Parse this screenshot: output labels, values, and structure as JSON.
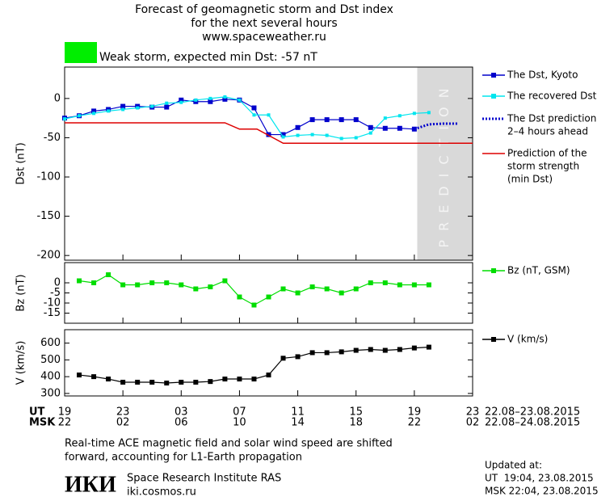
{
  "header": {
    "title": [
      "Forecast of geomagnetic storm and Dst index",
      "for the next several hours",
      "www.spaceweather.ru"
    ],
    "status": "Weak storm, expected min Dst: -57 nT",
    "status_color": "#00ee00"
  },
  "chart_data": [
    {
      "type": "line",
      "ylabel": "Dst (nT)",
      "ylim": [
        -206,
        40
      ],
      "yticks": [
        0,
        -50,
        -100,
        -150,
        -200
      ],
      "xlim": [
        0,
        28
      ],
      "prediction_region": {
        "start": 24.2,
        "end": 28,
        "label": "PREDICTION",
        "color": "#d9d9d9"
      },
      "series": [
        {
          "name": [
            "The Dst, Kyoto"
          ],
          "color": "#0000cc",
          "marker": "square",
          "dash": false,
          "x": [
            0,
            1,
            2,
            3,
            4,
            5,
            6,
            7,
            8,
            9,
            10,
            11,
            12,
            13,
            14,
            15,
            16,
            17,
            18,
            19,
            20,
            21,
            22,
            23,
            24
          ],
          "values": [
            -25,
            -22,
            -16,
            -14,
            -10,
            -10,
            -11,
            -11,
            -2,
            -4,
            -4,
            -1,
            -2,
            -12,
            -46,
            -46,
            -37,
            -27,
            -27,
            -27,
            -27,
            -37,
            -38,
            -38,
            -39
          ]
        },
        {
          "name": [
            "The recovered Dst"
          ],
          "color": "#00e5ee",
          "marker": "small-square",
          "dash": false,
          "x": [
            0,
            1,
            2,
            3,
            4,
            5,
            6,
            7,
            8,
            9,
            10,
            11,
            12,
            13,
            14,
            15,
            16,
            17,
            18,
            19,
            20,
            21,
            22,
            23,
            24,
            25
          ],
          "values": [
            -26,
            -22,
            -19,
            -16,
            -14,
            -12,
            -10,
            -6,
            -5,
            -2,
            0,
            2,
            -2,
            -21,
            -21,
            -49,
            -47,
            -46,
            -47,
            -51,
            -50,
            -44,
            -25,
            -22,
            -19,
            -18
          ]
        },
        {
          "name": [
            "The Dst prediction",
            "2–4 hours ahead"
          ],
          "color": "#0000cc",
          "marker": "none",
          "dash": true,
          "x": [
            24,
            25,
            26,
            27
          ],
          "values": [
            -39,
            -33,
            -32,
            -32
          ]
        },
        {
          "name": [
            "Prediction of the",
            "storm strength",
            "(min Dst)"
          ],
          "color": "#dd0000",
          "marker": "none",
          "dash": false,
          "x": [
            0,
            11,
            12,
            13.2,
            15,
            28
          ],
          "values": [
            -31,
            -31,
            -39,
            -39,
            -57,
            -57
          ]
        }
      ]
    },
    {
      "type": "line",
      "ylabel": "Bz (nT)",
      "ylim": [
        -20,
        10
      ],
      "yticks": [
        0,
        -5,
        -10,
        -15
      ],
      "xlim": [
        0,
        28
      ],
      "series": [
        {
          "name": [
            "Bz (nT, GSM)"
          ],
          "color": "#00dd00",
          "marker": "square",
          "dash": false,
          "x": [
            1,
            2,
            3,
            4,
            5,
            6,
            7,
            8,
            9,
            10,
            11,
            12,
            13,
            14,
            15,
            16,
            17,
            18,
            19,
            20,
            21,
            22,
            23,
            24,
            25
          ],
          "values": [
            1,
            0,
            4,
            -1,
            -1,
            0,
            0,
            -1,
            -3,
            -2,
            1,
            -7,
            -11,
            -7,
            -3,
            -5,
            -2,
            -3,
            -5,
            -3,
            0,
            0,
            -1,
            -1,
            -1
          ]
        }
      ]
    },
    {
      "type": "line",
      "ylabel": "V (km/s)",
      "ylim": [
        285,
        680
      ],
      "yticks": [
        600,
        500,
        400,
        300
      ],
      "xlim": [
        0,
        28
      ],
      "xticks": [
        {
          "value": 0,
          "label": "19"
        },
        {
          "value": 4,
          "label": "23"
        },
        {
          "value": 8,
          "label": "03"
        },
        {
          "value": 12,
          "label": "07"
        },
        {
          "value": 16,
          "label": "11"
        },
        {
          "value": 20,
          "label": "15"
        },
        {
          "value": 24,
          "label": "19"
        },
        {
          "value": 28,
          "label": "23"
        }
      ],
      "xticks2": [
        {
          "value": 0,
          "label": "22"
        },
        {
          "value": 4,
          "label": "02"
        },
        {
          "value": 8,
          "label": "06"
        },
        {
          "value": 12,
          "label": "10"
        },
        {
          "value": 16,
          "label": "14"
        },
        {
          "value": 20,
          "label": "18"
        },
        {
          "value": 24,
          "label": "22"
        },
        {
          "value": 28,
          "label": "02"
        }
      ],
      "xlabel": "UT",
      "xlabel2": "MSK",
      "xrange_label": "22.08–23.08.2015",
      "xrange_label2": "22.08–24.08.2015",
      "series": [
        {
          "name": [
            "V (km/s)"
          ],
          "color": "#000000",
          "marker": "square",
          "dash": false,
          "x": [
            1,
            2,
            3,
            4,
            5,
            6,
            7,
            8,
            9,
            10,
            11,
            12,
            13,
            14,
            15,
            16,
            17,
            18,
            19,
            20,
            21,
            22,
            23,
            24,
            25
          ],
          "values": [
            410,
            400,
            386,
            367,
            367,
            367,
            362,
            367,
            367,
            371,
            386,
            386,
            386,
            410,
            510,
            519,
            543,
            543,
            548,
            557,
            562,
            557,
            562,
            571,
            576
          ]
        }
      ]
    }
  ],
  "footer": {
    "note": [
      "Real-time ACE magnetic field and solar wind speed are shifted",
      "forward, accounting for L1-Earth propagation"
    ],
    "logo": "ИКИ",
    "institute": [
      "Space Research Institute RAS",
      "iki.cosmos.ru"
    ],
    "updated": [
      "Updated at:",
      "UT  19:04, 23.08.2015",
      "MSK 22:04, 23.08.2015"
    ]
  }
}
